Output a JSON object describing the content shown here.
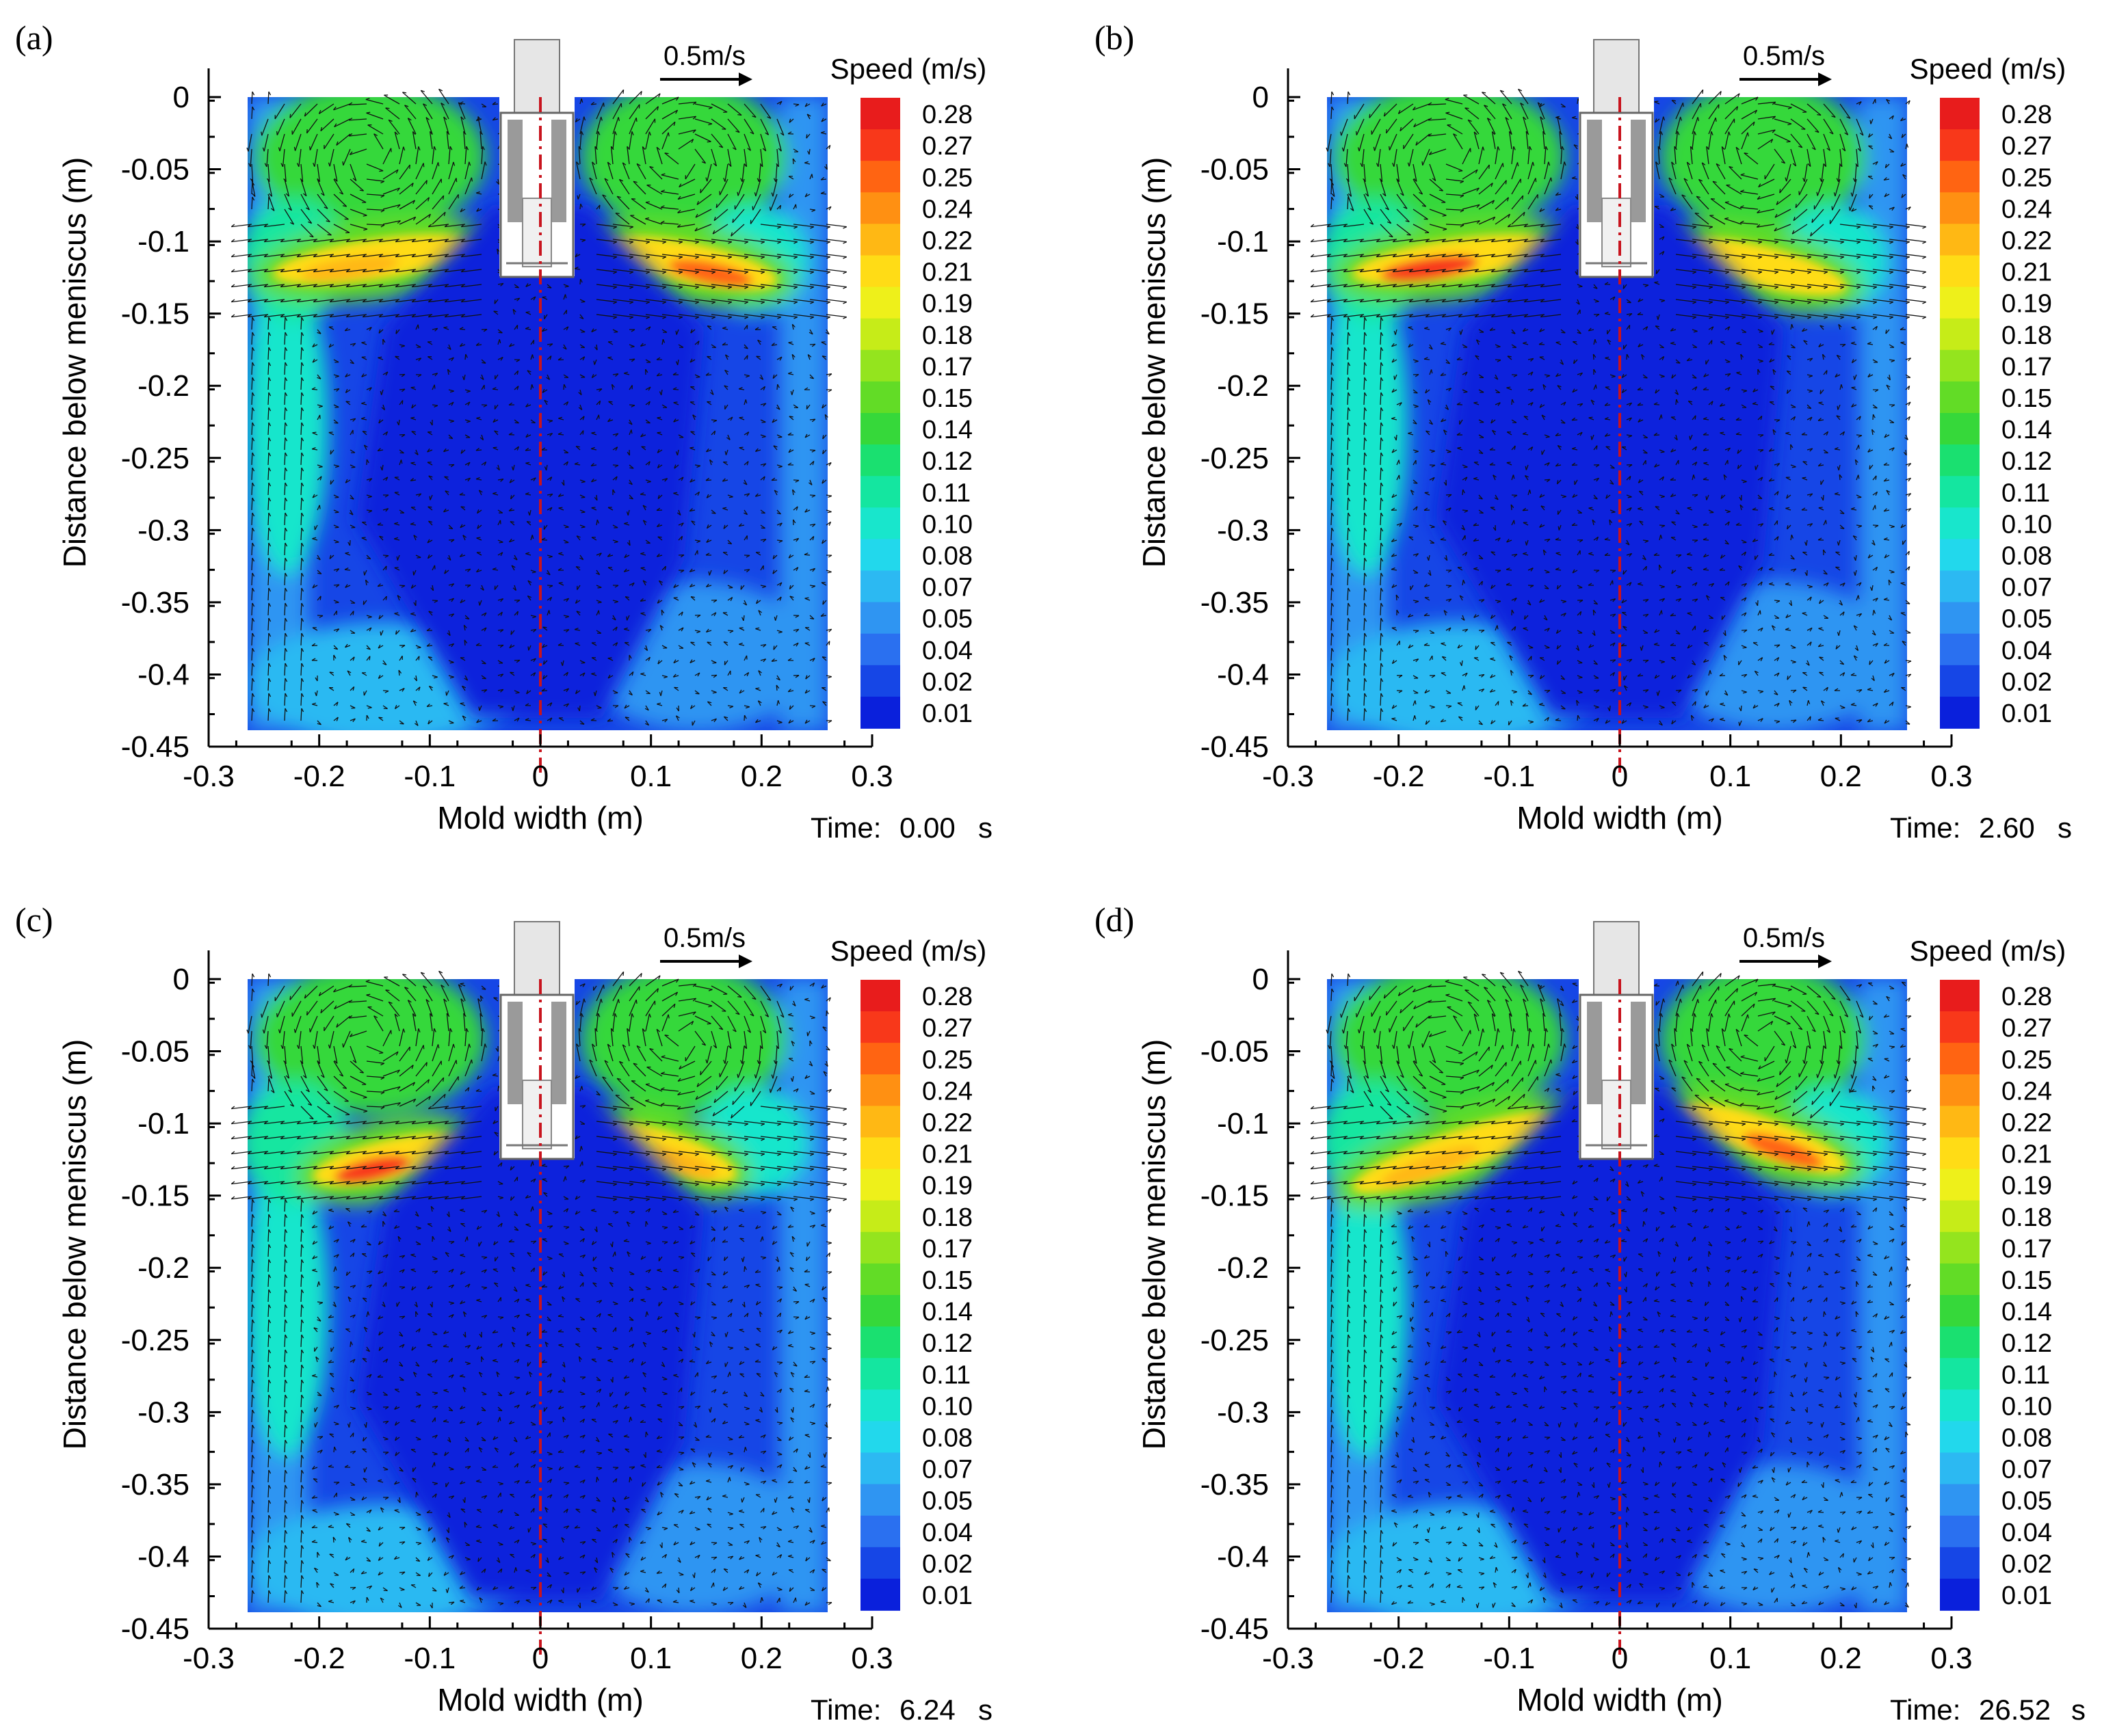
{
  "figure": {
    "colormap": [
      "#0a20dc",
      "#1646e6",
      "#2a70f0",
      "#2f95f2",
      "#2cb9f2",
      "#22d8ec",
      "#18e6cc",
      "#14e6a0",
      "#1ae070",
      "#36d83a",
      "#62dc26",
      "#94e41e",
      "#c6ec18",
      "#eef01a",
      "#ffdc16",
      "#ffb814",
      "#ff9012",
      "#ff6412",
      "#f8381a",
      "#e81c1c"
    ],
    "colors": {
      "axis": "#000000",
      "vector": "#111111",
      "centerline": "#c8141e",
      "nozzle_fill": "#e6e6e6",
      "nozzle_dark": "#9a9a9a"
    }
  },
  "chart_data": [
    {
      "type": "heatmap",
      "panel_label": "(a)",
      "xlabel": "Mold width (m)",
      "ylabel": "Distance below meniscus (m)",
      "xlim": [
        -0.3,
        0.3
      ],
      "ylim": [
        -0.45,
        0.02
      ],
      "xticks": [
        -0.3,
        -0.2,
        -0.1,
        0,
        0.1,
        0.2,
        0.3
      ],
      "xtick_labels": [
        "-0.3",
        "-0.2",
        "-0.1",
        "0",
        "0.1",
        "0.2",
        "0.3"
      ],
      "yticks": [
        0,
        -0.05,
        -0.1,
        -0.15,
        -0.2,
        -0.25,
        -0.3,
        -0.35,
        -0.4,
        -0.45
      ],
      "ytick_labels": [
        "0",
        "-0.05",
        "-0.1",
        "-0.15",
        "-0.2",
        "-0.25",
        "-0.3",
        "-0.35",
        "-0.4",
        "-0.45"
      ],
      "colorbar_title": "Speed (m/s)",
      "colorbar_levels": [
        "0.28",
        "0.27",
        "0.25",
        "0.24",
        "0.22",
        "0.21",
        "0.19",
        "0.18",
        "0.17",
        "0.15",
        "0.14",
        "0.12",
        "0.11",
        "0.10",
        "0.08",
        "0.07",
        "0.05",
        "0.04",
        "0.02",
        "0.01"
      ],
      "reference_vector": "0.5m/s",
      "time_label": "Time:",
      "time_value": "0.00",
      "time_unit": "s",
      "jets": [
        {
          "side": "left",
          "x0": -0.04,
          "y0": -0.1,
          "x1": -0.26,
          "y1": -0.125,
          "peak_speed": 0.22
        },
        {
          "side": "right",
          "x0": 0.04,
          "y0": -0.1,
          "x1": 0.23,
          "y1": -0.13,
          "peak_speed": 0.25
        }
      ]
    },
    {
      "type": "heatmap",
      "panel_label": "(b)",
      "xlabel": "Mold width (m)",
      "ylabel": "Distance below meniscus (m)",
      "xlim": [
        -0.3,
        0.3
      ],
      "ylim": [
        -0.45,
        0.02
      ],
      "xticks": [
        -0.3,
        -0.2,
        -0.1,
        0,
        0.1,
        0.2,
        0.3
      ],
      "xtick_labels": [
        "-0.3",
        "-0.2",
        "-0.1",
        "0",
        "0.1",
        "0.2",
        "0.3"
      ],
      "yticks": [
        0,
        -0.05,
        -0.1,
        -0.15,
        -0.2,
        -0.25,
        -0.3,
        -0.35,
        -0.4,
        -0.45
      ],
      "ytick_labels": [
        "0",
        "-0.05",
        "-0.1",
        "-0.15",
        "-0.2",
        "-0.25",
        "-0.3",
        "-0.35",
        "-0.4",
        "-0.45"
      ],
      "colorbar_title": "Speed (m/s)",
      "colorbar_levels": [
        "0.28",
        "0.27",
        "0.25",
        "0.24",
        "0.22",
        "0.21",
        "0.19",
        "0.18",
        "0.17",
        "0.15",
        "0.14",
        "0.12",
        "0.11",
        "0.10",
        "0.08",
        "0.07",
        "0.05",
        "0.04",
        "0.02",
        "0.01"
      ],
      "reference_vector": "0.5m/s",
      "time_label": "Time:",
      "time_value": "2.60",
      "time_unit": "s",
      "jets": [
        {
          "side": "left",
          "x0": -0.04,
          "y0": -0.1,
          "x1": -0.26,
          "y1": -0.125,
          "peak_speed": 0.27
        },
        {
          "side": "right",
          "x0": 0.04,
          "y0": -0.1,
          "x1": 0.22,
          "y1": -0.135,
          "peak_speed": 0.21
        }
      ]
    },
    {
      "type": "heatmap",
      "panel_label": "(c)",
      "xlabel": "Mold width (m)",
      "ylabel": "Distance below meniscus (m)",
      "xlim": [
        -0.3,
        0.3
      ],
      "ylim": [
        -0.45,
        0.02
      ],
      "xticks": [
        -0.3,
        -0.2,
        -0.1,
        0,
        0.1,
        0.2,
        0.3
      ],
      "xtick_labels": [
        "-0.3",
        "-0.2",
        "-0.1",
        "0",
        "0.1",
        "0.2",
        "0.3"
      ],
      "yticks": [
        0,
        -0.05,
        -0.1,
        -0.15,
        -0.2,
        -0.25,
        -0.3,
        -0.35,
        -0.4,
        -0.45
      ],
      "ytick_labels": [
        "0",
        "-0.05",
        "-0.1",
        "-0.15",
        "-0.2",
        "-0.25",
        "-0.3",
        "-0.35",
        "-0.4",
        "-0.45"
      ],
      "colorbar_title": "Speed (m/s)",
      "colorbar_levels": [
        "0.28",
        "0.27",
        "0.25",
        "0.24",
        "0.22",
        "0.21",
        "0.19",
        "0.18",
        "0.17",
        "0.15",
        "0.14",
        "0.12",
        "0.11",
        "0.10",
        "0.08",
        "0.07",
        "0.05",
        "0.04",
        "0.02",
        "0.01"
      ],
      "reference_vector": "0.5m/s",
      "time_label": "Time:",
      "time_value": "6.24",
      "time_unit": "s",
      "jets": [
        {
          "side": "left",
          "x0": -0.05,
          "y0": -0.11,
          "x1": -0.22,
          "y1": -0.14,
          "peak_speed": 0.26
        },
        {
          "side": "right",
          "x0": 0.04,
          "y0": -0.1,
          "x1": 0.19,
          "y1": -0.14,
          "peak_speed": 0.23
        }
      ]
    },
    {
      "type": "heatmap",
      "panel_label": "(d)",
      "xlabel": "Mold width (m)",
      "ylabel": "Distance below meniscus (m)",
      "xlim": [
        -0.3,
        0.3
      ],
      "ylim": [
        -0.45,
        0.02
      ],
      "xticks": [
        -0.3,
        -0.2,
        -0.1,
        0,
        0.1,
        0.2,
        0.3
      ],
      "xtick_labels": [
        "-0.3",
        "-0.2",
        "-0.1",
        "0",
        "0.1",
        "0.2",
        "0.3"
      ],
      "yticks": [
        0,
        -0.05,
        -0.1,
        -0.15,
        -0.2,
        -0.25,
        -0.3,
        -0.35,
        -0.4,
        -0.45
      ],
      "ytick_labels": [
        "0",
        "-0.05",
        "-0.1",
        "-0.15",
        "-0.2",
        "-0.25",
        "-0.3",
        "-0.35",
        "-0.4",
        "-0.45"
      ],
      "colorbar_title": "Speed (m/s)",
      "colorbar_levels": [
        "0.28",
        "0.27",
        "0.25",
        "0.24",
        "0.22",
        "0.21",
        "0.19",
        "0.18",
        "0.17",
        "0.15",
        "0.14",
        "0.12",
        "0.11",
        "0.10",
        "0.08",
        "0.07",
        "0.05",
        "0.04",
        "0.02",
        "0.01"
      ],
      "reference_vector": "0.5m/s",
      "time_label": "Time:",
      "time_value": "26.52",
      "time_unit": "s",
      "jets": [
        {
          "side": "left",
          "x0": -0.04,
          "y0": -0.09,
          "x1": -0.26,
          "y1": -0.15,
          "peak_speed": 0.23
        },
        {
          "side": "right",
          "x0": 0.04,
          "y0": -0.085,
          "x1": 0.22,
          "y1": -0.135,
          "peak_speed": 0.25
        }
      ]
    }
  ]
}
